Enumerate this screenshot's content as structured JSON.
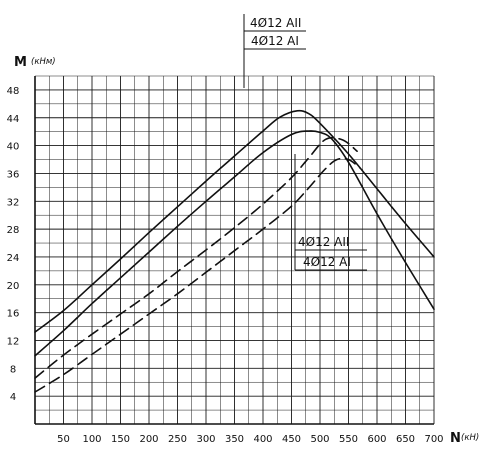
{
  "chart_data": {
    "type": "line",
    "ylabel": "M",
    "yunit": "(кНм)",
    "xlabel": "N",
    "xunit": "(кН)",
    "xlim": [
      0,
      700
    ],
    "ylim": [
      0,
      50
    ],
    "x_tick_labels": [
      "50",
      "100",
      "150",
      "200",
      "250",
      "300",
      "350",
      "400",
      "450",
      "500",
      "550",
      "600",
      "650",
      "700"
    ],
    "y_tick_labels": [
      "4",
      "8",
      "12",
      "16",
      "20",
      "24",
      "28",
      "32",
      "36",
      "40",
      "44",
      "48"
    ],
    "grid": true,
    "annotations": {
      "top": {
        "line1": "4Ø12 AII",
        "line2": "4Ø12 AI"
      },
      "right": {
        "line1": "4Ø12 AII",
        "line2": "4Ø12 AI"
      }
    },
    "series": [
      {
        "dash": false,
        "x": [
          0,
          50,
          100,
          150,
          200,
          250,
          300,
          350,
          400,
          430,
          460,
          480,
          500,
          550,
          600,
          650,
          700
        ],
        "y": [
          13.2,
          16.3,
          20,
          23.7,
          27.5,
          31.2,
          34.9,
          38.5,
          42.1,
          44.1,
          45,
          44.6,
          43.2,
          38.8,
          33.8,
          28.8,
          24
        ]
      },
      {
        "dash": false,
        "x": [
          0,
          50,
          100,
          150,
          200,
          250,
          300,
          350,
          400,
          450,
          480,
          500,
          520,
          550,
          600,
          650,
          700
        ],
        "y": [
          9.8,
          13.4,
          17.3,
          21,
          24.7,
          28.4,
          32,
          35.5,
          39,
          41.6,
          42.1,
          41.9,
          41,
          37.6,
          30.2,
          23.2,
          16.5
        ]
      },
      {
        "dash": true,
        "x": [
          0,
          50,
          100,
          150,
          200,
          250,
          300,
          350,
          400,
          450,
          480,
          510,
          540,
          565
        ],
        "y": [
          6.6,
          9.9,
          12.9,
          15.8,
          18.7,
          21.9,
          25,
          28.2,
          31.6,
          35.4,
          38.2,
          40.9,
          40.8,
          39.2
        ]
      },
      {
        "dash": true,
        "x": [
          0,
          50,
          100,
          150,
          200,
          250,
          300,
          350,
          400,
          450,
          480,
          510,
          530,
          550,
          570
        ],
        "y": [
          4.6,
          7.1,
          10,
          12.9,
          15.8,
          18.7,
          21.8,
          24.9,
          28,
          31.3,
          33.9,
          36.7,
          38,
          38,
          36.8
        ]
      }
    ]
  }
}
